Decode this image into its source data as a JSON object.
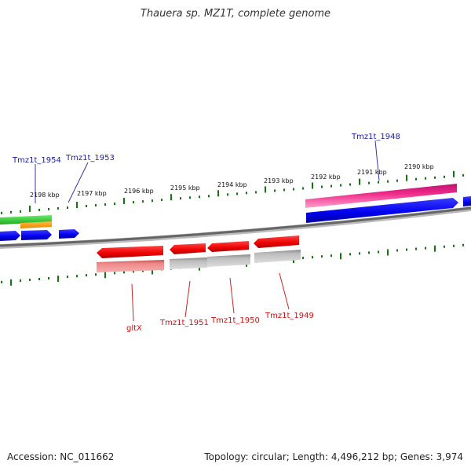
{
  "title": "Thauera sp. MZ1T, complete genome",
  "footer": {
    "accession": "Accession: NC_011662",
    "stats": "Topology: circular; Length: 4,496,212 bp; Genes: 3,974"
  },
  "scale_labels": [
    "2198 kbp",
    "2197 kbp",
    "2196 kbp",
    "2195 kbp",
    "2194 kbp",
    "2193 kbp",
    "2192 kbp",
    "2191 kbp",
    "2190 kbp"
  ],
  "gene_labels": {
    "top": [
      "Tmz1t_1954",
      "Tmz1t_1953",
      "Tmz1t_1948"
    ],
    "bottom": [
      "gltX",
      "Tmz1t_1951",
      "Tmz1t_1950",
      "Tmz1t_1949"
    ]
  },
  "colors": {
    "forward_gene": "#ff0000",
    "forward_gene_light": "#ee8888",
    "reverse_gene": "#0000ee",
    "pink_gene": "#ee2a8a",
    "green_gene": "#33cc33",
    "orange_gene": "#ff9900",
    "gray_gene": "#bbbbbb",
    "backbone": "#777777",
    "ticks": "#117711",
    "label_blue": "#1a1aa6",
    "label_red": "#cc1111"
  }
}
